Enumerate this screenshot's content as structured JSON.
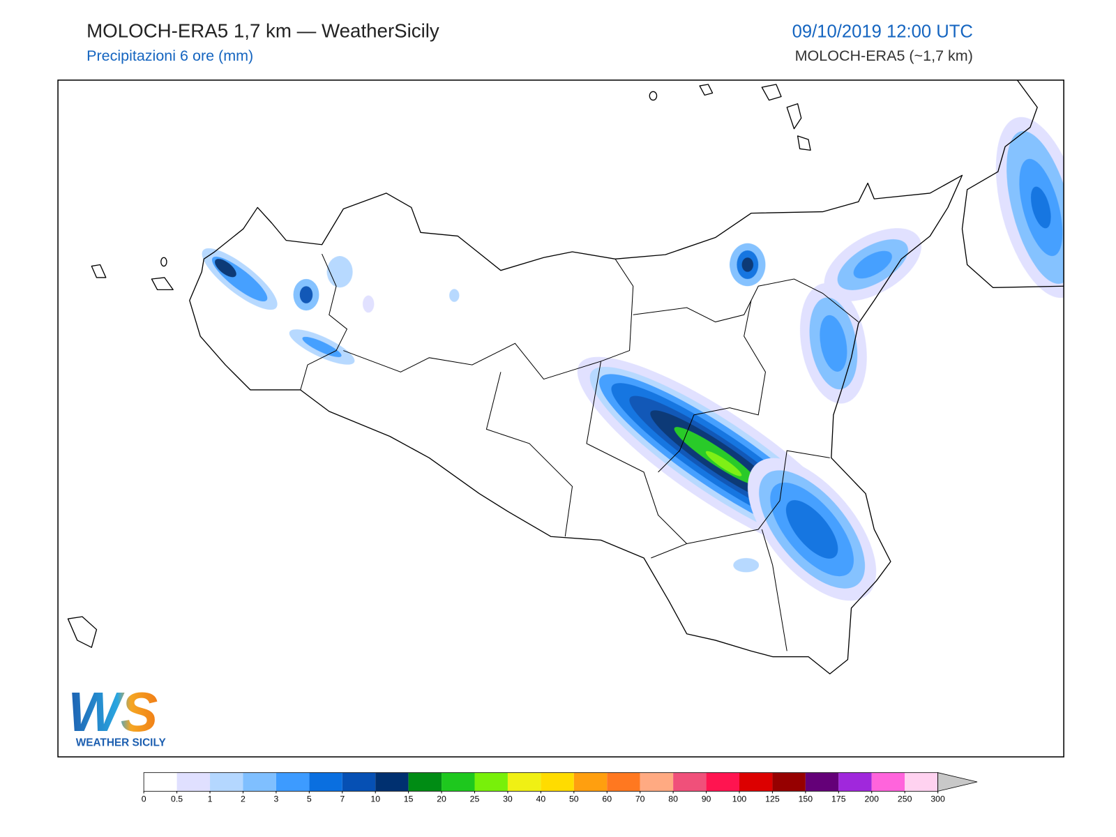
{
  "header": {
    "title": "MOLOCH-ERA5 1,7 km — WeatherSicily",
    "subtitle": "Precipitazioni 6 ore (mm)",
    "valid_time": "09/10/2019 12:00 UTC",
    "model": "MOLOCH-ERA5 (~1,7 km)"
  },
  "logo": {
    "mark": "WS",
    "text": "WEATHER SICILY"
  },
  "colorbar": {
    "ticks": [
      0,
      0.5,
      1,
      2,
      3,
      5,
      7,
      10,
      15,
      20,
      25,
      30,
      40,
      50,
      60,
      70,
      80,
      90,
      100,
      125,
      150,
      175,
      200,
      250,
      300
    ],
    "colors": [
      "#ffffff",
      "#e0e0ff",
      "#b4d7ff",
      "#7fbfff",
      "#3d9bff",
      "#0a6fe0",
      "#0650b4",
      "#003070",
      "#008c14",
      "#1ec81e",
      "#78f00a",
      "#f0f014",
      "#ffdc00",
      "#ff9f0f",
      "#ff7820",
      "#ffaa82",
      "#f0507a",
      "#ff1450",
      "#dc0000",
      "#960000",
      "#640078",
      "#a028dc",
      "#ff64dc",
      "#ffd2f0"
    ],
    "over_color": "#c8c8c8"
  }
}
